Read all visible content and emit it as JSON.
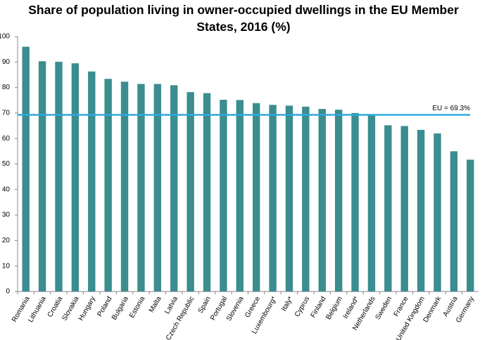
{
  "chart_data": {
    "type": "bar",
    "title": "Share of population living in owner-occupied dwellings in the EU Member States, 2016 (%)",
    "categories": [
      "Romania",
      "Lithuania",
      "Croatia",
      "Slovakia",
      "Hungary",
      "Poland",
      "Bulgaria",
      "Estonia",
      "Malta",
      "Latvia",
      "Czech Republic",
      "Spain",
      "Portugal",
      "Slovenia",
      "Greece",
      "Luxembourg*",
      "Italy*",
      "Cyprus",
      "Finland",
      "Belgium",
      "Ireland*",
      "Netherlands",
      "Sweden",
      "France",
      "United Kingdom",
      "Denmark",
      "Austria",
      "Germany"
    ],
    "values": [
      96.0,
      90.3,
      90.1,
      89.5,
      86.3,
      83.4,
      82.3,
      81.4,
      81.4,
      80.9,
      78.2,
      77.8,
      75.2,
      75.1,
      73.9,
      73.2,
      72.9,
      72.5,
      71.6,
      71.3,
      70.0,
      69.0,
      65.2,
      64.9,
      63.4,
      62.0,
      55.0,
      51.7
    ],
    "color": "#3b8d8f",
    "ylim": [
      0,
      100
    ],
    "yticks": [
      0,
      10,
      20,
      30,
      40,
      50,
      60,
      70,
      80,
      90,
      100
    ],
    "grid": false,
    "reference_line": {
      "value": 69.3,
      "label": "EU = 69.3%",
      "color": "#2ea9df"
    }
  }
}
